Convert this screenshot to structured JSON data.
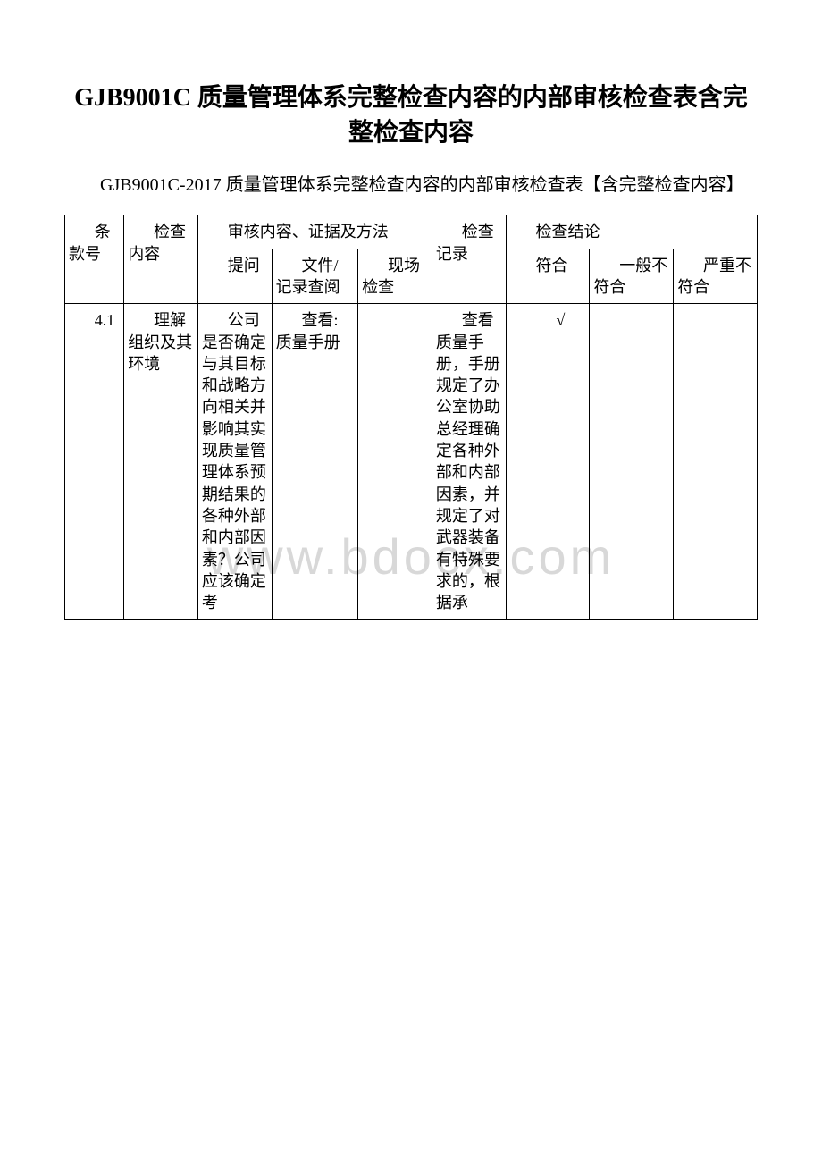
{
  "title": "GJB9001C 质量管理体系完整检查内容的内部审核检查表含完整检查内容",
  "subtitle": "GJB9001C-2017 质量管理体系完整检查内容的内部审核检查表【含完整检查内容】",
  "watermark": "www.bdocx.com",
  "headers": {
    "clause_no": "条款号",
    "check_content": "检查内容",
    "audit_method_group": "审核内容、证据及方法",
    "check_record": "检查记录",
    "conclusion_group": "检查结论",
    "interview": "提问",
    "doc_review": "文件/记录查阅",
    "onsite": "现场检查",
    "conform": "符合",
    "general_nonconform": "一般不符合",
    "serious_nonconform": "严重不符合"
  },
  "row1": {
    "clause": "4.1",
    "content": "理解组织及其环境",
    "interview": "公司是否确定与其目标和战略方向相关并影响其实现质量管理体系预期结果的各种外部和内部因素？公司应该确定考",
    "doc_review": "查看:质量手册",
    "onsite": "",
    "record": "查看质量手册，手册规定了办公室协助总经理确定各种外部和内部因素，并规定了对武器装备有特殊要求的，根据承",
    "conform": "√",
    "general": "",
    "serious": ""
  },
  "table_style": {
    "border_color": "#000000",
    "background_color": "#ffffff",
    "font_size_body": 18,
    "font_size_title": 28,
    "font_size_subtitle": 20,
    "watermark_color": "#d8d8d8",
    "watermark_fontsize": 56
  }
}
